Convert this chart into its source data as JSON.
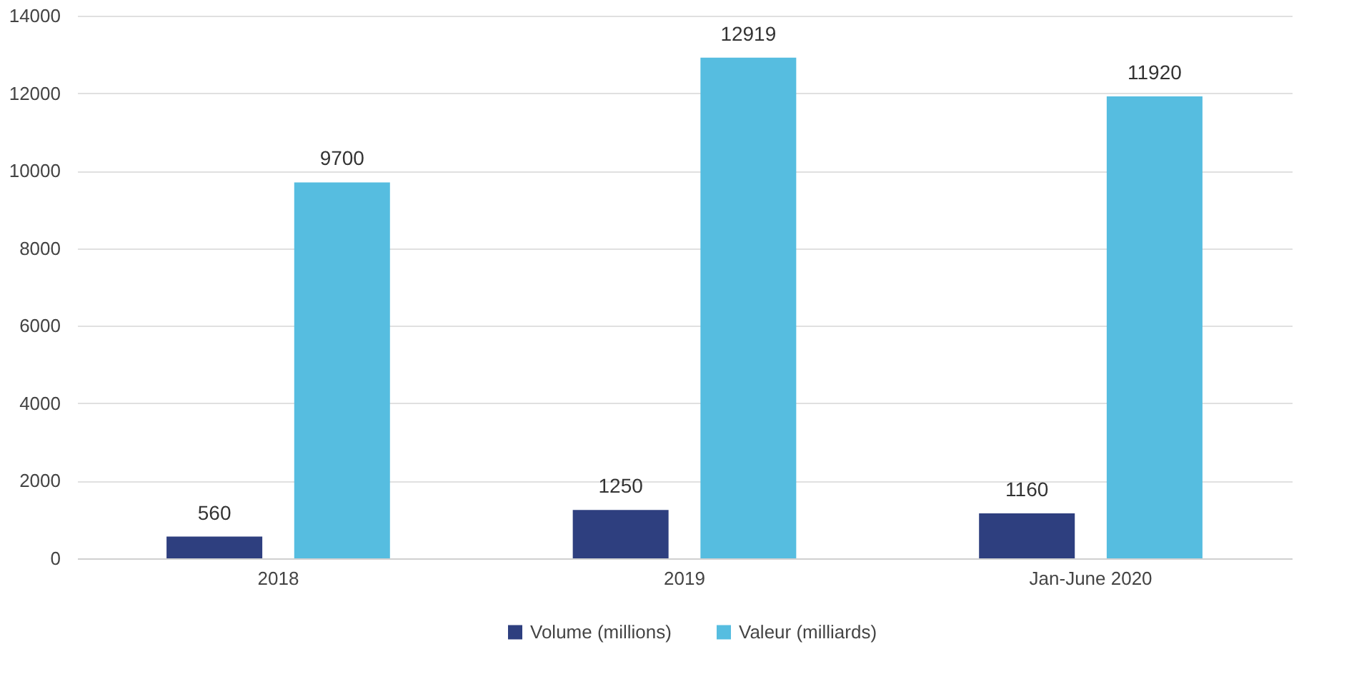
{
  "chart_data": {
    "type": "bar",
    "categories": [
      "2018",
      "2019",
      "Jan-June 2020"
    ],
    "series": [
      {
        "name": "Volume (millions)",
        "color": "#2e3f7f",
        "values": [
          560,
          1250,
          1160
        ]
      },
      {
        "name": "Valeur (milliards)",
        "color": "#56bde0",
        "values": [
          9700,
          12919,
          11920
        ]
      }
    ],
    "ylim": [
      0,
      14000
    ],
    "yticks": [
      0,
      2000,
      4000,
      6000,
      8000,
      10000,
      12000,
      14000
    ],
    "grid": "y",
    "legend": "bottom",
    "data_labels": true
  }
}
